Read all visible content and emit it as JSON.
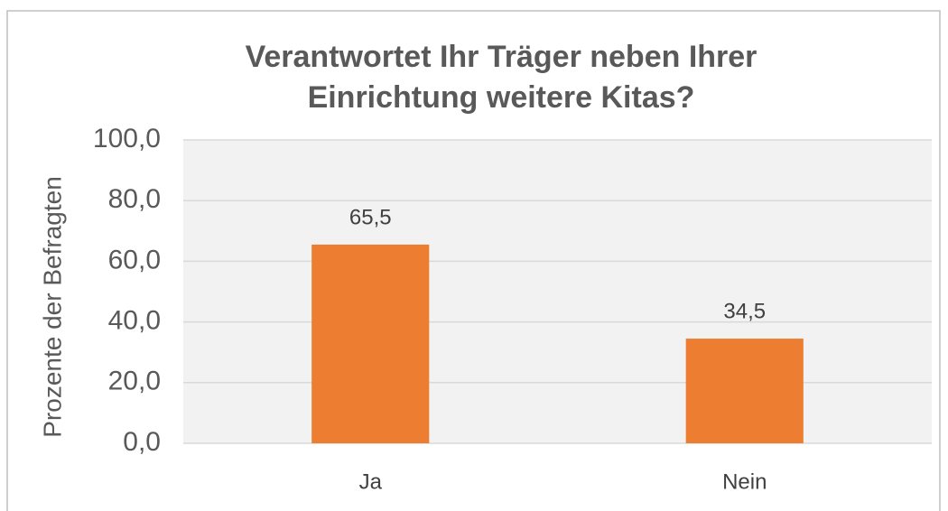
{
  "chart_data": {
    "type": "bar",
    "title": [
      "Verantwortet Ihr Träger neben Ihrer",
      "Einrichtung weitere Kitas?"
    ],
    "y_label": "Prozente der Befragten",
    "categories": [
      "Ja",
      "Nein"
    ],
    "values": [
      65.5,
      34.5
    ],
    "value_labels": [
      "65,5",
      "34,5"
    ],
    "color": "#ed7d31",
    "ylim": [
      0,
      100
    ],
    "yticks": [
      {
        "value": 0,
        "label": "0,0"
      },
      {
        "value": 20,
        "label": "20,0"
      },
      {
        "value": 40,
        "label": "40,0"
      },
      {
        "value": 60,
        "label": "60,0"
      },
      {
        "value": 80,
        "label": "80,0"
      },
      {
        "value": 100,
        "label": "100,0"
      }
    ],
    "grid": true
  }
}
